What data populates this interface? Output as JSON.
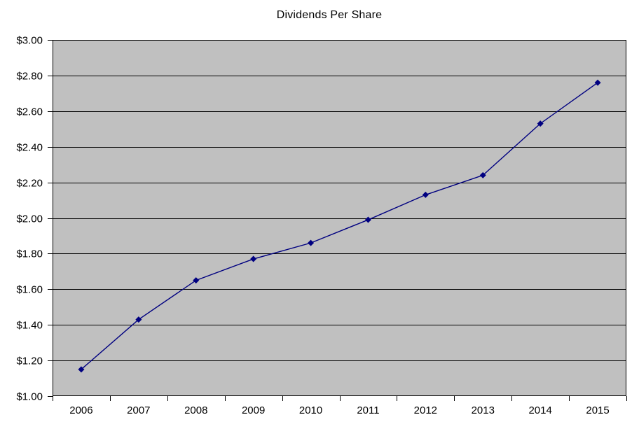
{
  "chart_data": {
    "type": "line",
    "title": "Dividends Per Share",
    "categories": [
      "2006",
      "2007",
      "2008",
      "2009",
      "2010",
      "2011",
      "2012",
      "2013",
      "2014",
      "2015"
    ],
    "series": [
      {
        "name": "Dividends Per Share",
        "values": [
          1.15,
          1.43,
          1.65,
          1.77,
          1.86,
          1.99,
          2.13,
          2.24,
          2.53,
          2.76
        ]
      }
    ],
    "xlabel": "",
    "ylabel": "",
    "ylim": [
      1.0,
      3.0
    ],
    "ytick_step": 0.2,
    "ytick_labels": [
      "$1.00",
      "$1.20",
      "$1.40",
      "$1.60",
      "$1.80",
      "$2.00",
      "$2.20",
      "$2.40",
      "$2.60",
      "$2.80",
      "$3.00"
    ],
    "grid": "horizontal",
    "legend_position": "none",
    "marker": "diamond",
    "colors": {
      "line": "#000080",
      "marker": "#000080",
      "plot_background": "#c0c0c0",
      "gridline": "#000000",
      "axis": "#000000",
      "text": "#000000",
      "page_background": "#ffffff"
    }
  }
}
